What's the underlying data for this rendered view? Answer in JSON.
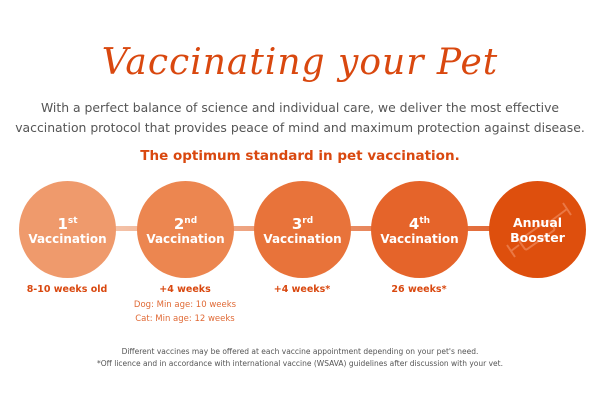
{
  "title": "Vaccinating your Pet",
  "intro": [
    "With a perfect balance of science and individual care, we deliver the most effective",
    "vaccination protocol that provides peace of mind and maximum protection against disease."
  ],
  "subtitle": "The optimum standard in pet vaccination.",
  "steps": [
    {
      "num": "1",
      "sup": "st",
      "label": "Vaccination",
      "timing": "8-10 weeks old",
      "color": "#ef9a6c"
    },
    {
      "num": "2",
      "sup": "nd",
      "label": "Vaccination",
      "timing": "+4 weeks",
      "notes": [
        "Dog: Min age: 10 weeks",
        "Cat: Min age: 12 weeks"
      ],
      "color": "#ec8650"
    },
    {
      "num": "3",
      "sup": "rd",
      "label": "Vaccination",
      "timing": "+4 weeks*",
      "color": "#e8733a"
    },
    {
      "num": "4",
      "sup": "th",
      "label": "Vaccination",
      "timing": "26 weeks*",
      "color": "#e5642a"
    },
    {
      "label1": "Annual",
      "label2": "Booster",
      "icon": "syringe-icon",
      "color": "#de4f0d"
    }
  ],
  "footnotes": [
    "Different vaccines may be offered at each vaccine appointment depending on your pet's need.",
    "*Off licence and in accordance with international vaccine (WSAVA) guidelines after discussion with your vet."
  ]
}
